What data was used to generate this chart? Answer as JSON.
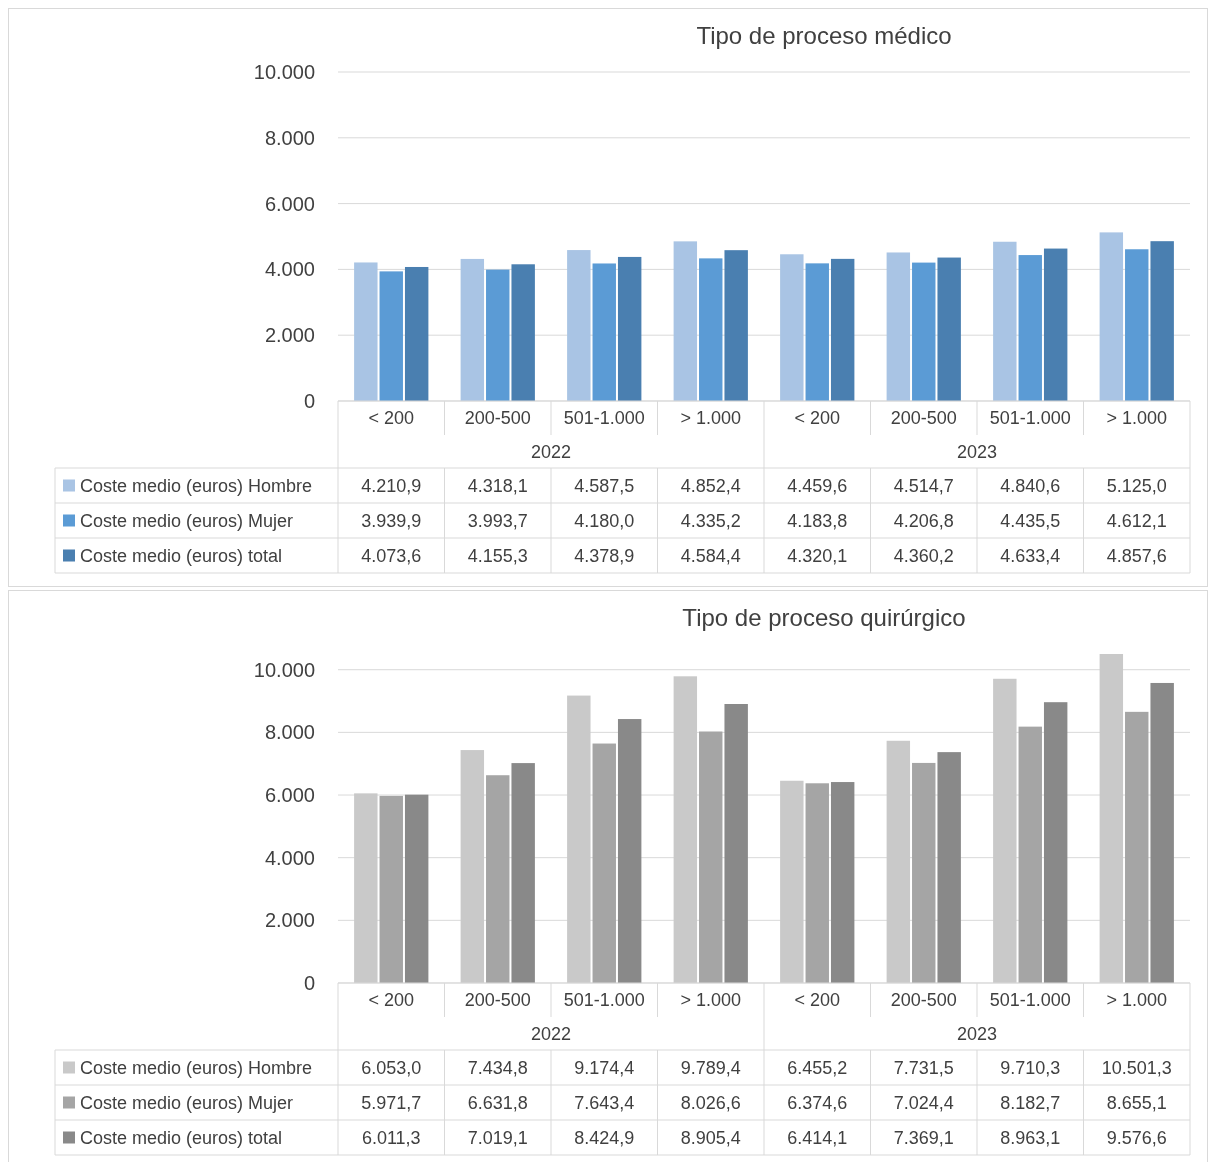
{
  "chart_data": [
    {
      "type": "bar",
      "title": "Tipo de proceso médico",
      "categories": [
        "< 200",
        "200-500",
        "501-1.000",
        "> 1.000",
        "< 200",
        "200-500",
        "501-1.000",
        "> 1.000"
      ],
      "annotations": [
        "2022",
        "2023"
      ],
      "series": [
        {
          "name": "Coste medio (euros) Hombre",
          "color": "#a9c4e4",
          "values": [
            4210.9,
            4318.1,
            4587.5,
            4852.4,
            4459.6,
            4514.7,
            4840.6,
            5125.0
          ],
          "value_labels": [
            "4.210,9",
            "4.318,1",
            "4.587,5",
            "4.852,4",
            "4.459,6",
            "4.514,7",
            "4.840,6",
            "5.125,0"
          ]
        },
        {
          "name": "Coste medio (euros) Mujer",
          "color": "#5b9bd5",
          "values": [
            3939.9,
            3993.7,
            4180.0,
            4335.2,
            4183.8,
            4206.8,
            4435.5,
            4612.1
          ],
          "value_labels": [
            "3.939,9",
            "3.993,7",
            "4.180,0",
            "4.335,2",
            "4.183,8",
            "4.206,8",
            "4.435,5",
            "4.612,1"
          ]
        },
        {
          "name": "Coste medio (euros) total",
          "color": "#4a7fb0",
          "values": [
            4073.6,
            4155.3,
            4378.9,
            4584.4,
            4320.1,
            4360.2,
            4633.4,
            4857.6
          ],
          "value_labels": [
            "4.073,6",
            "4.155,3",
            "4.378,9",
            "4.584,4",
            "4.320,1",
            "4.360,2",
            "4.633,4",
            "4.857,6"
          ]
        }
      ],
      "ylim": [
        0,
        10000
      ],
      "yticks": [
        0,
        {
          "value": 2000,
          "label": "2.000"
        },
        {
          "value": 4000,
          "label": "4.000"
        },
        {
          "value": 6000,
          "label": "6.000"
        },
        {
          "value": 8000,
          "label": "8.000"
        },
        {
          "value": 10000,
          "label": "10.000"
        }
      ],
      "grid": "y",
      "legend": "bottom"
    },
    {
      "type": "bar",
      "title": "Tipo de proceso quirúrgico",
      "categories": [
        "< 200",
        "200-500",
        "501-1.000",
        "> 1.000",
        "< 200",
        "200-500",
        "501-1.000",
        "> 1.000"
      ],
      "annotations": [
        "2022",
        "2023"
      ],
      "series": [
        {
          "name": "Coste medio (euros) Hombre",
          "color": "#c9c9c9",
          "values": [
            6053.0,
            7434.8,
            9174.4,
            9789.4,
            6455.2,
            7731.5,
            9710.3,
            10501.3
          ],
          "value_labels": [
            "6.053,0",
            "7.434,8",
            "9.174,4",
            "9.789,4",
            "6.455,2",
            "7.731,5",
            "9.710,3",
            "10.501,3"
          ]
        },
        {
          "name": "Coste medio (euros) Mujer",
          "color": "#a5a5a5",
          "values": [
            5971.7,
            6631.8,
            7643.4,
            8026.6,
            6374.6,
            7024.4,
            8182.7,
            8655.1
          ],
          "value_labels": [
            "5.971,7",
            "6.631,8",
            "7.643,4",
            "8.026,6",
            "6.374,6",
            "7.024,4",
            "8.182,7",
            "8.655,1"
          ]
        },
        {
          "name": "Coste medio (euros) total",
          "color": "#898989",
          "values": [
            6011.3,
            7019.1,
            8424.9,
            8905.4,
            6414.1,
            7369.1,
            8963.1,
            9576.6
          ],
          "value_labels": [
            "6.011,3",
            "7.019,1",
            "8.424,9",
            "8.905,4",
            "6.414,1",
            "7.369,1",
            "8.963,1",
            "9.576,6"
          ]
        }
      ],
      "ylim": [
        0,
        10501.3
      ],
      "yticks": [
        0,
        {
          "value": 2000,
          "label": "2.000"
        },
        {
          "value": 4000,
          "label": "4.000"
        },
        {
          "value": 6000,
          "label": "6.000"
        },
        {
          "value": 8000,
          "label": "8.000"
        },
        {
          "value": 10000,
          "label": "10.000"
        }
      ],
      "grid": "y",
      "legend": "bottom"
    }
  ]
}
